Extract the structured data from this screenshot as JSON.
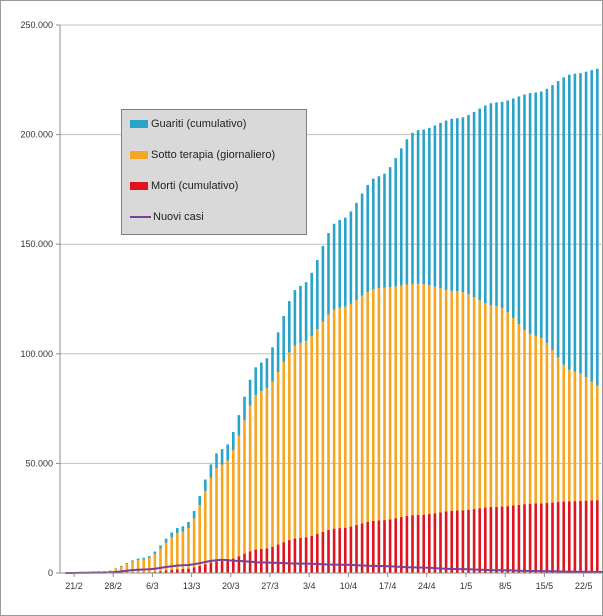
{
  "chart_data": {
    "type": "bar",
    "stacked": true,
    "title": "",
    "xlabel": "",
    "ylabel": "",
    "ylim": [
      0,
      250000
    ],
    "y_ticks": [
      "0",
      "50.000",
      "100.000",
      "150.000",
      "200.000",
      "250.000"
    ],
    "y_tick_values": [
      0,
      50000,
      100000,
      150000,
      200000,
      250000
    ],
    "x_tick_labels": [
      "21/2",
      "28/2",
      "6/3",
      "13/3",
      "20/3",
      "27/3",
      "3/4",
      "10/4",
      "17/4",
      "24/4",
      "1/5",
      "8/5",
      "15/5",
      "22/5"
    ],
    "x_tick_day_index": [
      0,
      7,
      14,
      21,
      28,
      35,
      42,
      49,
      56,
      63,
      70,
      77,
      84,
      91
    ],
    "grid": true,
    "legend_position": "top-left",
    "colors": {
      "guariti": "#2aa3c9",
      "sotto_terapia": "#f5a623",
      "morti": "#e0141e",
      "nuovi_casi": "#7a3f9b"
    },
    "legend": [
      {
        "label": "Guariti (cumulativo)",
        "kind": "bar",
        "color": "#2aa3c9"
      },
      {
        "label": "Sotto terapia (giornaliero)",
        "kind": "bar",
        "color": "#f5a623"
      },
      {
        "label": "Morti (cumulativo)",
        "kind": "bar",
        "color": "#e0141e"
      },
      {
        "label": "Nuovi casi",
        "kind": "line",
        "color": "#7a3f9b"
      }
    ],
    "series_keyframes": {
      "morti": [
        [
          0,
          0
        ],
        [
          7,
          20
        ],
        [
          14,
          200
        ],
        [
          21,
          1800
        ],
        [
          28,
          5500
        ],
        [
          35,
          11000
        ],
        [
          42,
          16000
        ],
        [
          49,
          20500
        ],
        [
          56,
          24000
        ],
        [
          63,
          26500
        ],
        [
          70,
          28500
        ],
        [
          77,
          30200
        ],
        [
          84,
          31700
        ],
        [
          91,
          32800
        ],
        [
          96,
          33300
        ]
      ],
      "sotto_terapia": [
        [
          0,
          0
        ],
        [
          7,
          900
        ],
        [
          14,
          6000
        ],
        [
          21,
          17000
        ],
        [
          28,
          44000
        ],
        [
          35,
          72000
        ],
        [
          42,
          89000
        ],
        [
          49,
          100500
        ],
        [
          56,
          106000
        ],
        [
          63,
          105500
        ],
        [
          70,
          100000
        ],
        [
          77,
          91500
        ],
        [
          84,
          76500
        ],
        [
          91,
          59000
        ],
        [
          96,
          51500
        ]
      ],
      "guariti": [
        [
          0,
          0
        ],
        [
          7,
          50
        ],
        [
          14,
          700
        ],
        [
          21,
          2500
        ],
        [
          28,
          7000
        ],
        [
          35,
          13000
        ],
        [
          42,
          26000
        ],
        [
          49,
          40000
        ],
        [
          56,
          51000
        ],
        [
          63,
          70000
        ],
        [
          70,
          79000
        ],
        [
          77,
          93000
        ],
        [
          84,
          111000
        ],
        [
          91,
          136000
        ],
        [
          96,
          145500
        ]
      ],
      "nuovi_casi": [
        [
          0,
          0
        ],
        [
          7,
          200
        ],
        [
          14,
          1600
        ],
        [
          21,
          3500
        ],
        [
          28,
          6000
        ],
        [
          31,
          5500
        ],
        [
          35,
          4800
        ],
        [
          42,
          4300
        ],
        [
          49,
          3800
        ],
        [
          56,
          3200
        ],
        [
          63,
          2500
        ],
        [
          70,
          1800
        ],
        [
          77,
          1300
        ],
        [
          84,
          900
        ],
        [
          91,
          600
        ],
        [
          96,
          450
        ]
      ]
    },
    "days_visible": 97
  }
}
